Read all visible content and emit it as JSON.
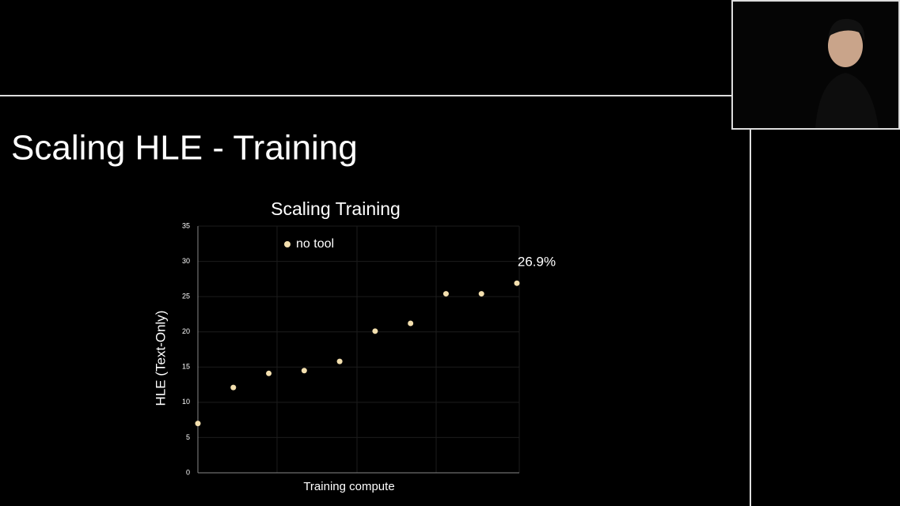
{
  "slide_title": "Scaling HLE - Training",
  "chart_data": {
    "type": "scatter",
    "title": "Scaling Training",
    "y_label": "HLE (Text-Only)",
    "x_label": "Training compute",
    "categories": [
      null,
      null,
      null,
      null,
      null,
      null,
      null,
      null,
      null,
      null
    ],
    "series": [
      {
        "name": "no tool",
        "color": "#f3dfae",
        "values": [
          7.0,
          12.1,
          14.1,
          14.5,
          15.8,
          20.1,
          21.2,
          25.4,
          25.4,
          26.9
        ]
      }
    ],
    "value_labels": [
      null,
      null,
      null,
      null,
      null,
      null,
      null,
      null,
      null,
      "26.9%"
    ],
    "ylim": [
      0,
      35
    ],
    "yticks": [
      0,
      5,
      10,
      15,
      20,
      25,
      30,
      35
    ],
    "grid": true,
    "legend": "top-left"
  }
}
